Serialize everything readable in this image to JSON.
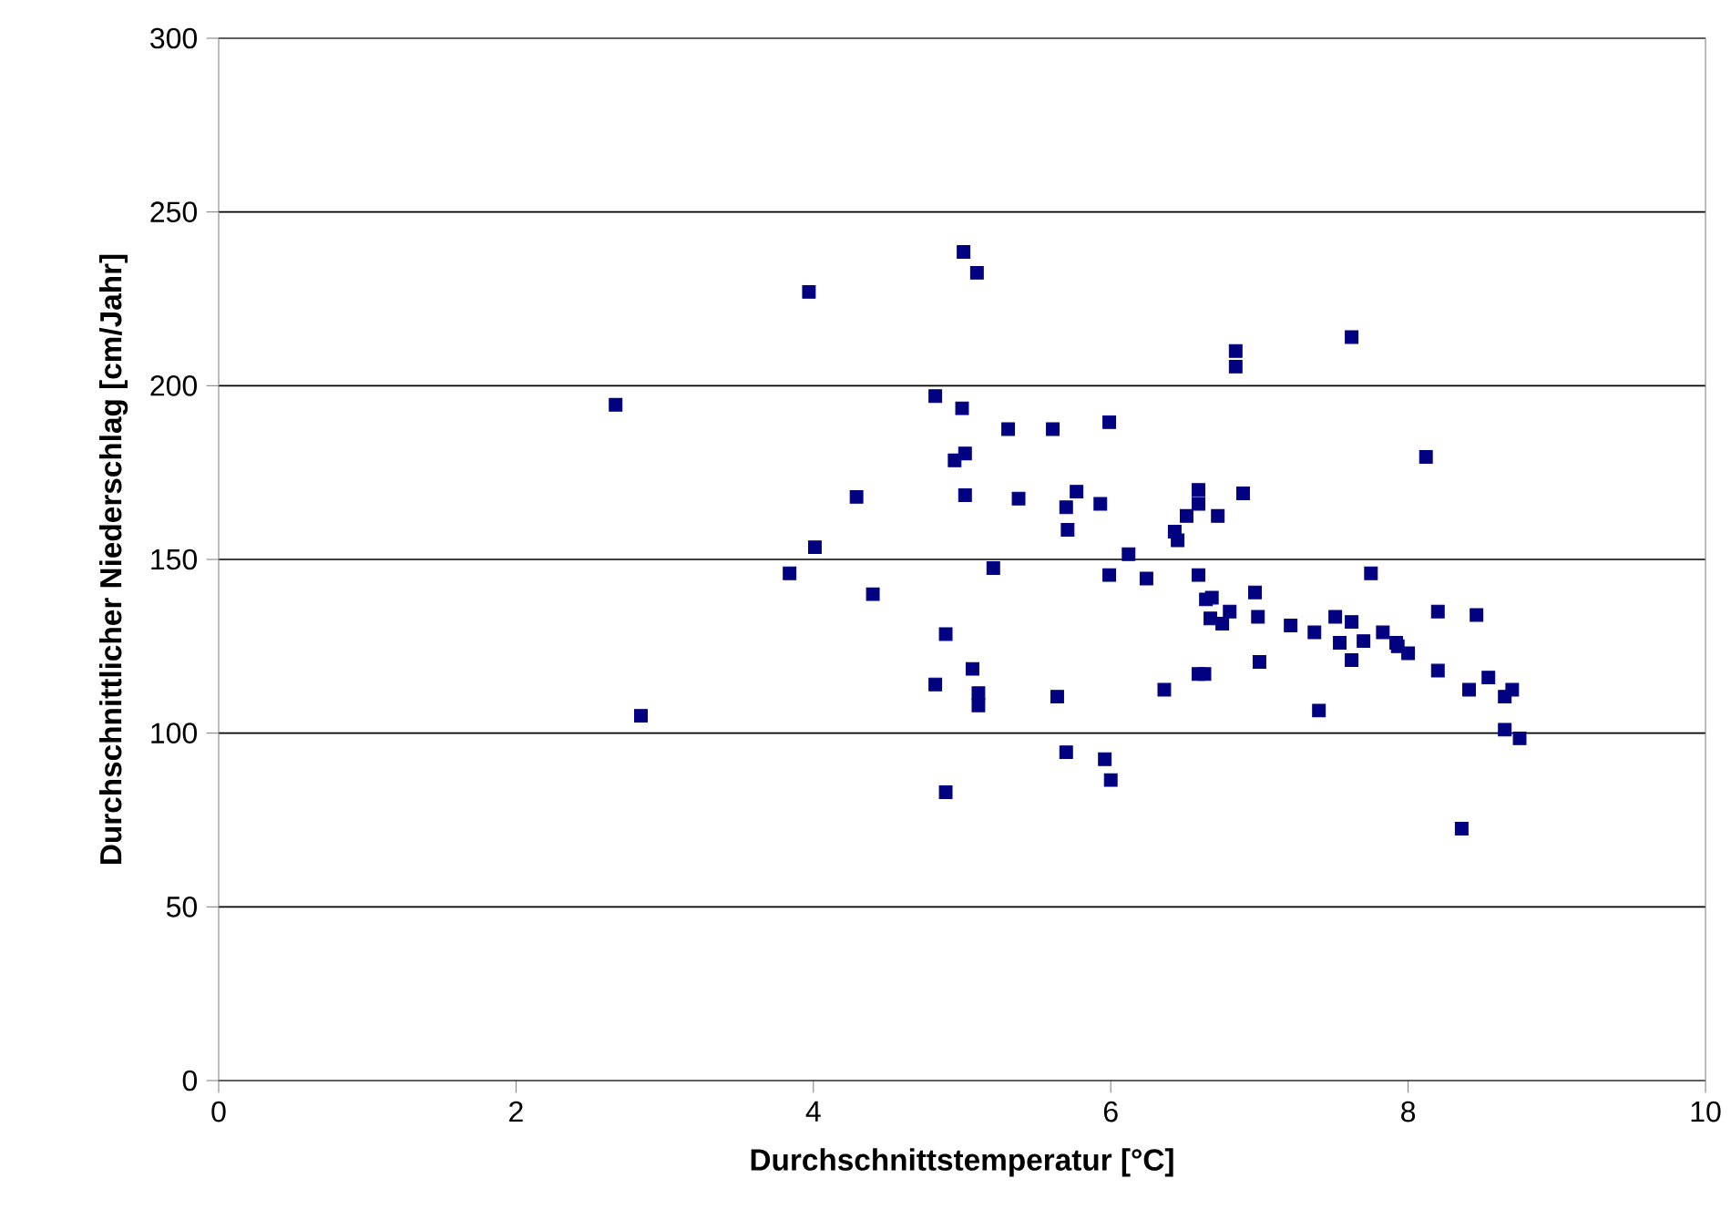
{
  "chart_data": {
    "type": "scatter",
    "xlabel": "Durchschnittstemperatur [°C]",
    "ylabel": "Durchschnittlicher Niederschlag [cm/Jahr]",
    "xlim": [
      0,
      10
    ],
    "xticks": [
      0,
      2,
      4,
      6,
      8,
      10
    ],
    "ylim": [
      0,
      300
    ],
    "yticks": [
      0,
      50,
      100,
      150,
      200,
      250,
      300
    ],
    "grid": "y",
    "marker": "square",
    "series": [
      {
        "color": "#000080",
        "x": [
          2.67,
          2.84,
          3.84,
          3.97,
          4.01,
          4.29,
          4.4,
          4.82,
          4.82,
          4.89,
          4.89,
          4.95,
          5.0,
          5.02,
          5.02,
          5.01,
          5.07,
          5.1,
          5.11,
          5.11,
          5.21,
          5.31,
          5.38,
          5.61,
          5.64,
          5.7,
          5.71,
          5.7,
          5.77,
          5.93,
          5.96,
          5.99,
          5.99,
          6.0,
          6.12,
          6.24,
          6.36,
          6.43,
          6.45,
          6.51,
          6.59,
          6.59,
          6.59,
          6.59,
          6.63,
          6.64,
          6.67,
          6.68,
          6.72,
          6.75,
          6.8,
          6.84,
          6.84,
          6.89,
          6.97,
          6.99,
          7.0,
          7.21,
          7.37,
          7.4,
          7.51,
          7.54,
          7.62,
          7.62,
          7.62,
          7.7,
          7.75,
          7.83,
          7.92,
          7.93,
          8.0,
          8.12,
          8.2,
          8.2,
          8.36,
          8.41,
          8.46,
          8.54,
          8.65,
          8.65,
          8.7,
          8.75
        ],
        "values": [
          194.5,
          105,
          146,
          227,
          153.5,
          168,
          140,
          197,
          114,
          128.5,
          83,
          178.5,
          193.5,
          180.5,
          168.5,
          238.5,
          118.5,
          232.5,
          111.5,
          108,
          147.5,
          187.5,
          167.5,
          187.5,
          110.5,
          165,
          158.5,
          94.5,
          169.5,
          166,
          92.5,
          189.5,
          145.5,
          86.5,
          151.5,
          144.5,
          112.5,
          158,
          155.5,
          162.5,
          166,
          170,
          145.5,
          117,
          117,
          138.5,
          133,
          139,
          162.5,
          131.5,
          135,
          210,
          205.5,
          169,
          140.5,
          133.5,
          120.5,
          131,
          129,
          106.5,
          133.5,
          126,
          214,
          132,
          121,
          126.5,
          146,
          129,
          126,
          125,
          123,
          179.5,
          135,
          118,
          72.5,
          112.5,
          134,
          116,
          101,
          110.5,
          112.5,
          98.5
        ]
      }
    ]
  }
}
